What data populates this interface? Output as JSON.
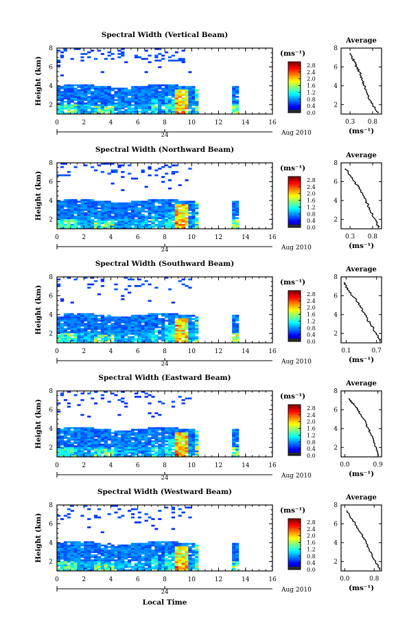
{
  "chart_data": [
    {
      "type": "heatmap",
      "title": "Spectral Width (Vertical Beam)",
      "ylabel": "Height (km)",
      "xlim": [
        0,
        16
      ],
      "ylim": [
        1,
        8
      ],
      "xticks": [
        "0",
        "2",
        "4",
        "6",
        "8",
        "10",
        "12",
        "14",
        "16"
      ],
      "yticks": [
        "2",
        "4",
        "6",
        "8"
      ],
      "date_marker": {
        "label": "24",
        "x": 8
      },
      "date_suffix": "Aug 2010",
      "colorbar": {
        "unit": "(ms⁻¹)",
        "ticks": [
          "0.0",
          "0.4",
          "0.8",
          "1.2",
          "1.6",
          "2.0",
          "2.4",
          "2.8"
        ],
        "range": [
          0,
          3.0
        ]
      },
      "gaps": [
        [
          10.6,
          12.9
        ],
        [
          13.6,
          16
        ]
      ],
      "profile": {
        "title": "Average",
        "xlabel": "(ms⁻¹)",
        "xticks": [
          "0.3",
          "0.8"
        ],
        "xlim": [
          0.1,
          1.0
        ],
        "ylim": [
          1,
          8
        ],
        "yticks": [
          "2",
          "4",
          "6",
          "8"
        ],
        "points": [
          [
            0.3,
            7.5
          ],
          [
            0.34,
            7.0
          ],
          [
            0.4,
            6.5
          ],
          [
            0.45,
            6.0
          ],
          [
            0.5,
            5.5
          ],
          [
            0.55,
            5.0
          ],
          [
            0.58,
            4.5
          ],
          [
            0.62,
            4.0
          ],
          [
            0.66,
            3.5
          ],
          [
            0.7,
            3.0
          ],
          [
            0.74,
            2.5
          ],
          [
            0.8,
            2.0
          ],
          [
            0.86,
            1.5
          ],
          [
            0.92,
            1.1
          ]
        ]
      }
    },
    {
      "type": "heatmap",
      "title": "Spectral Width (Northward Beam)",
      "ylabel": "Height (km)",
      "xlim": [
        0,
        16
      ],
      "ylim": [
        1,
        8
      ],
      "xticks": [
        "0",
        "2",
        "4",
        "6",
        "8",
        "10",
        "12",
        "14",
        "16"
      ],
      "yticks": [
        "2",
        "4",
        "6",
        "8"
      ],
      "date_marker": {
        "label": "24",
        "x": 8
      },
      "date_suffix": "Aug 2010",
      "colorbar": {
        "unit": "(ms⁻¹)",
        "ticks": [
          "0.0",
          "0.4",
          "0.8",
          "1.2",
          "1.6",
          "2.0",
          "2.4",
          "2.8"
        ],
        "range": [
          0,
          3.0
        ]
      },
      "gaps": [
        [
          10.6,
          12.9
        ],
        [
          13.6,
          16
        ]
      ],
      "profile": {
        "title": "Average",
        "xlabel": "(ms⁻¹)",
        "xticks": [
          "0.3",
          "0.8"
        ],
        "xlim": [
          0.1,
          1.0
        ],
        "ylim": [
          1,
          8
        ],
        "yticks": [
          "2",
          "4",
          "6",
          "8"
        ],
        "points": [
          [
            0.2,
            7.4
          ],
          [
            0.26,
            7.0
          ],
          [
            0.32,
            6.5
          ],
          [
            0.4,
            6.0
          ],
          [
            0.48,
            5.5
          ],
          [
            0.54,
            5.0
          ],
          [
            0.6,
            4.5
          ],
          [
            0.65,
            4.0
          ],
          [
            0.7,
            3.5
          ],
          [
            0.74,
            3.0
          ],
          [
            0.8,
            2.5
          ],
          [
            0.86,
            2.0
          ],
          [
            0.9,
            1.5
          ],
          [
            0.94,
            1.1
          ]
        ]
      }
    },
    {
      "type": "heatmap",
      "title": "Spectral Width (Southward Beam)",
      "ylabel": "Height (km)",
      "xlim": [
        0,
        16
      ],
      "ylim": [
        1,
        8
      ],
      "xticks": [
        "0",
        "2",
        "4",
        "6",
        "8",
        "10",
        "12",
        "14",
        "16"
      ],
      "yticks": [
        "2",
        "4",
        "6",
        "8"
      ],
      "date_marker": {
        "label": "24",
        "x": 8
      },
      "date_suffix": "Aug 2010",
      "colorbar": {
        "unit": "(ms⁻¹)",
        "ticks": [
          "0.0",
          "0.4",
          "0.8",
          "1.2",
          "1.6",
          "2.0",
          "2.4",
          "2.8"
        ],
        "range": [
          0,
          3.0
        ]
      },
      "gaps": [
        [
          10.6,
          12.9
        ],
        [
          13.6,
          16
        ]
      ],
      "profile": {
        "title": "Average",
        "xlabel": "(ms⁻¹)",
        "xticks": [
          "0.1",
          "0.7"
        ],
        "xlim": [
          0.0,
          0.8
        ],
        "ylim": [
          1,
          8
        ],
        "yticks": [
          "2",
          "4",
          "6",
          "8"
        ],
        "points": [
          [
            0.05,
            7.4
          ],
          [
            0.1,
            7.0
          ],
          [
            0.16,
            6.5
          ],
          [
            0.22,
            6.0
          ],
          [
            0.3,
            5.5
          ],
          [
            0.36,
            5.0
          ],
          [
            0.42,
            4.5
          ],
          [
            0.47,
            4.0
          ],
          [
            0.52,
            3.5
          ],
          [
            0.58,
            3.0
          ],
          [
            0.64,
            2.5
          ],
          [
            0.7,
            2.0
          ],
          [
            0.74,
            1.5
          ],
          [
            0.78,
            1.1
          ]
        ]
      }
    },
    {
      "type": "heatmap",
      "title": "Spectral Width (Eastward Beam)",
      "ylabel": "Height (km)",
      "xlim": [
        0,
        16
      ],
      "ylim": [
        1,
        8
      ],
      "xticks": [
        "0",
        "2",
        "4",
        "6",
        "8",
        "10",
        "12",
        "14",
        "16"
      ],
      "yticks": [
        "2",
        "4",
        "6",
        "8"
      ],
      "date_marker": {
        "label": "24",
        "x": 8
      },
      "date_suffix": "Aug 2010",
      "colorbar": {
        "unit": "(ms⁻¹)",
        "ticks": [
          "0.0",
          "0.4",
          "0.8",
          "1.2",
          "1.6",
          "2.0",
          "2.4",
          "2.8"
        ],
        "range": [
          0,
          3.0
        ]
      },
      "gaps": [
        [
          10.6,
          12.9
        ],
        [
          13.6,
          16
        ]
      ],
      "profile": {
        "title": "Average",
        "xlabel": "(ms⁻¹)",
        "xticks": [
          "0.0",
          "0.9"
        ],
        "xlim": [
          -0.1,
          1.0
        ],
        "ylim": [
          1,
          8
        ],
        "yticks": [
          "2",
          "4",
          "6",
          "8"
        ],
        "points": [
          [
            0.1,
            7.2
          ],
          [
            0.2,
            6.8
          ],
          [
            0.28,
            6.4
          ],
          [
            0.36,
            6.0
          ],
          [
            0.44,
            5.5
          ],
          [
            0.52,
            5.0
          ],
          [
            0.58,
            4.5
          ],
          [
            0.64,
            4.0
          ],
          [
            0.7,
            3.5
          ],
          [
            0.76,
            3.0
          ],
          [
            0.8,
            2.5
          ],
          [
            0.86,
            2.0
          ],
          [
            0.9,
            1.5
          ],
          [
            0.92,
            1.1
          ]
        ]
      }
    },
    {
      "type": "heatmap",
      "title": "Spectral Width (Westward Beam)",
      "ylabel": "Height (km)",
      "xlim": [
        0,
        16
      ],
      "ylim": [
        1,
        8
      ],
      "xticks": [
        "0",
        "2",
        "4",
        "6",
        "8",
        "10",
        "12",
        "14",
        "16"
      ],
      "yticks": [
        "2",
        "4",
        "6",
        "8"
      ],
      "date_marker": {
        "label": "24",
        "x": 8
      },
      "date_suffix": "Aug 2010",
      "colorbar": {
        "unit": "(ms⁻¹)",
        "ticks": [
          "0.0",
          "0.4",
          "0.8",
          "1.2",
          "1.6",
          "2.0",
          "2.4",
          "2.8"
        ],
        "range": [
          0,
          3.0
        ]
      },
      "gaps": [
        [
          10.6,
          12.9
        ],
        [
          13.6,
          16
        ]
      ],
      "profile": {
        "title": "Average",
        "xlabel": "(ms⁻¹)",
        "xticks": [
          "0.0",
          "0.8"
        ],
        "xlim": [
          -0.1,
          1.0
        ],
        "ylim": [
          1,
          8
        ],
        "yticks": [
          "2",
          "4",
          "6",
          "8"
        ],
        "points": [
          [
            0.05,
            7.4
          ],
          [
            0.12,
            7.0
          ],
          [
            0.2,
            6.5
          ],
          [
            0.28,
            6.0
          ],
          [
            0.36,
            5.5
          ],
          [
            0.44,
            5.0
          ],
          [
            0.52,
            4.5
          ],
          [
            0.58,
            4.0
          ],
          [
            0.64,
            3.5
          ],
          [
            0.7,
            3.0
          ],
          [
            0.76,
            2.5
          ],
          [
            0.84,
            2.0
          ],
          [
            0.9,
            1.5
          ],
          [
            0.96,
            1.1
          ]
        ]
      }
    }
  ],
  "xlabel": "Local Time",
  "colors": {
    "low": "#0a14a0",
    "mid": "#3cdcb4",
    "high": "#d21e1e"
  }
}
